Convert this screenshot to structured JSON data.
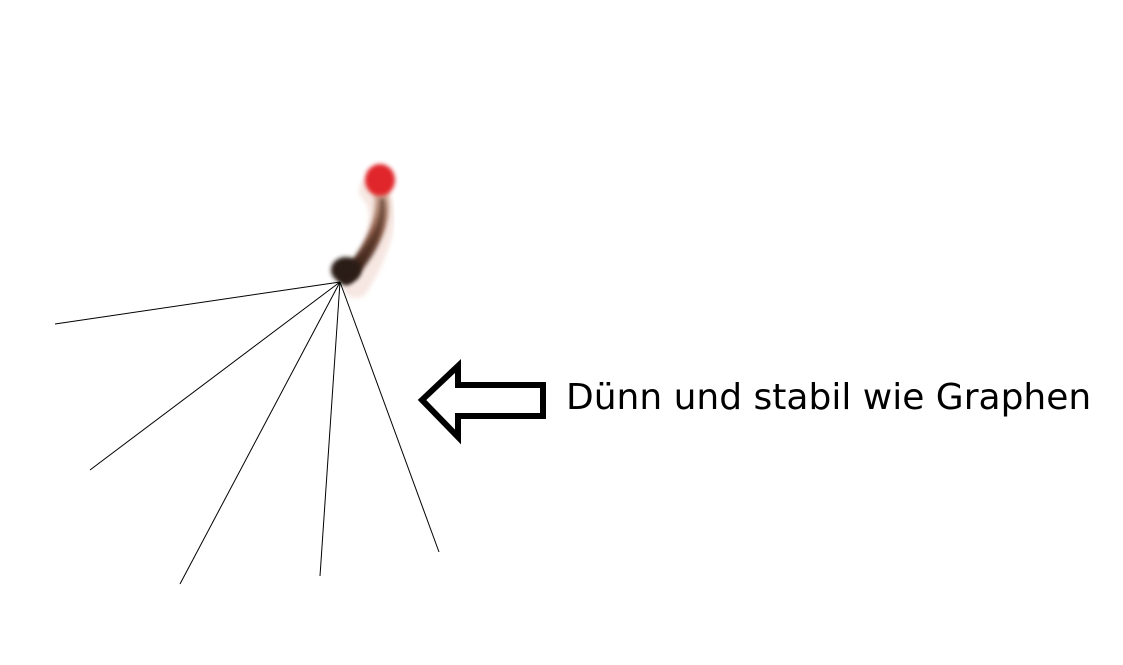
{
  "caption": {
    "text": "Dünn und stabil wie Graphen"
  },
  "colors": {
    "background": "#ffffff",
    "line": "#000000",
    "arrow": "#000000",
    "match_head": "#e0262a",
    "match_burnt": "#2a1a14"
  },
  "icons": {
    "arrow": "hollow-left-arrow"
  }
}
